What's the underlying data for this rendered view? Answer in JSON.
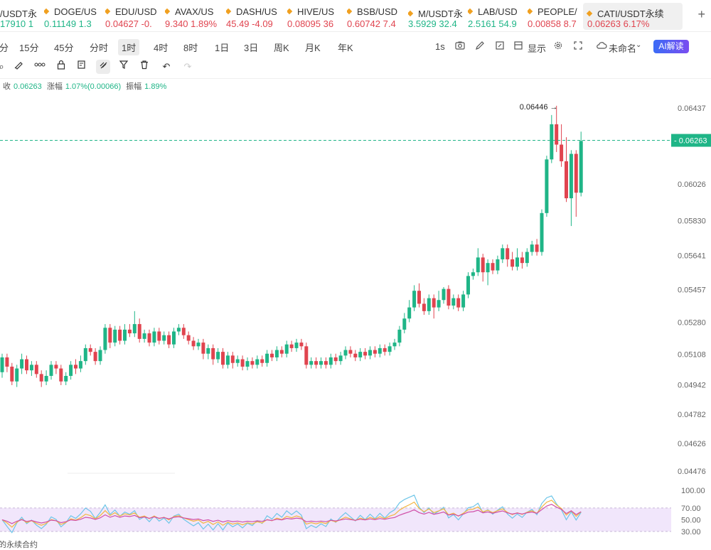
{
  "tickers": [
    {
      "symbol": "/USDT永",
      "price": "17910",
      "change": "1",
      "dir": "up"
    },
    {
      "symbol": "DOGE/US",
      "price": "0.11149",
      "change": "1.3",
      "dir": "up"
    },
    {
      "symbol": "EDU/USD",
      "price": "0.04627",
      "change": "-0.",
      "dir": "down"
    },
    {
      "symbol": "AVAX/US",
      "price": "9.340",
      "change": "1.89%",
      "dir": "down"
    },
    {
      "symbol": "DASH/US",
      "price": "45.49",
      "change": "-4.09",
      "dir": "down"
    },
    {
      "symbol": "HIVE/US",
      "price": "0.08095",
      "change": "36",
      "dir": "down"
    },
    {
      "symbol": "BSB/USD",
      "price": "0.60742",
      "change": "7.4",
      "dir": "down"
    },
    {
      "symbol": "M/USDT永",
      "price": "3.5929",
      "change": "32.4",
      "dir": "up"
    },
    {
      "symbol": "LAB/USD",
      "price": "2.5161",
      "change": "54.9",
      "dir": "up"
    },
    {
      "symbol": "PEOPLE/",
      "price": "0.00858",
      "change": "8.7",
      "dir": "down"
    },
    {
      "symbol": "CATI/USDT永续",
      "price": "0.06263",
      "change": "6.17%",
      "dir": "down",
      "active": true
    }
  ],
  "plus_label": "+",
  "intervals": [
    "分",
    "15分",
    "45分",
    "分时",
    "1时",
    "4时",
    "8时",
    "1日",
    "3日",
    "周K",
    "月K",
    "年K"
  ],
  "selected_interval": "1时",
  "right_toolbar": {
    "refresh": "1s",
    "display": "显示",
    "layout": "未命名",
    "ai": "AI解读"
  },
  "info": {
    "close_label": "收",
    "close": "0.06263",
    "amp_label": "涨幅",
    "amp": "1.07%(0.00066)",
    "range_label": "振幅",
    "range": "1.89%"
  },
  "footer_text": "的永续合约",
  "colors": {
    "up": "#1fb587",
    "down": "#e0444f",
    "rsi1": "#6ec6e8",
    "rsi2": "#f2b640",
    "rsi3": "#d04fa8",
    "rsi_band": "#f1e6fb"
  },
  "chart_data": {
    "type": "candlestick",
    "price_axis_ticks": [
      "0.06437",
      "0.06026",
      "0.05830",
      "0.05641",
      "0.05457",
      "0.05280",
      "0.05108",
      "0.04942",
      "0.04782",
      "0.04626",
      "0.04476"
    ],
    "ylim": [
      0.0441,
      0.0653
    ],
    "last_price": "0.06263",
    "high_annotation": "0.06446",
    "candles": [
      [
        0.0501,
        0.0509,
        0.0498,
        0.0511
      ],
      [
        0.0509,
        0.0504,
        0.0501,
        0.0511
      ],
      [
        0.0504,
        0.0496,
        0.0494,
        0.0506
      ],
      [
        0.0496,
        0.0503,
        0.0493,
        0.0505
      ],
      [
        0.0503,
        0.0508,
        0.05,
        0.0511
      ],
      [
        0.0508,
        0.0502,
        0.05,
        0.051
      ],
      [
        0.0502,
        0.0505,
        0.0499,
        0.0507
      ],
      [
        0.0505,
        0.05,
        0.0498,
        0.0507
      ],
      [
        0.05,
        0.0496,
        0.0493,
        0.0502
      ],
      [
        0.0496,
        0.0499,
        0.0494,
        0.0502
      ],
      [
        0.0499,
        0.0505,
        0.0497,
        0.0507
      ],
      [
        0.0505,
        0.0503,
        0.05,
        0.0507
      ],
      [
        0.0503,
        0.0496,
        0.0494,
        0.0505
      ],
      [
        0.0496,
        0.0499,
        0.0494,
        0.0501
      ],
      [
        0.0499,
        0.0505,
        0.0497,
        0.0507
      ],
      [
        0.0505,
        0.0503,
        0.05,
        0.0508
      ],
      [
        0.0503,
        0.0507,
        0.0501,
        0.051
      ],
      [
        0.0507,
        0.0514,
        0.0505,
        0.0516
      ],
      [
        0.0514,
        0.0512,
        0.051,
        0.0516
      ],
      [
        0.0512,
        0.0507,
        0.0505,
        0.0514
      ],
      [
        0.0507,
        0.0513,
        0.0505,
        0.0515
      ],
      [
        0.0513,
        0.0525,
        0.0511,
        0.0527
      ],
      [
        0.0525,
        0.0517,
        0.0514,
        0.0527
      ],
      [
        0.0517,
        0.0524,
        0.0515,
        0.0526
      ],
      [
        0.0524,
        0.0518,
        0.0516,
        0.0526
      ],
      [
        0.0518,
        0.0524,
        0.0516,
        0.0527
      ],
      [
        0.0524,
        0.0522,
        0.052,
        0.0527
      ],
      [
        0.0522,
        0.0527,
        0.052,
        0.0534
      ],
      [
        0.0527,
        0.0519,
        0.0517,
        0.053
      ],
      [
        0.0519,
        0.0522,
        0.0517,
        0.0524
      ],
      [
        0.0522,
        0.0517,
        0.0515,
        0.0524
      ],
      [
        0.0517,
        0.0523,
        0.0515,
        0.0525
      ],
      [
        0.0523,
        0.0518,
        0.0516,
        0.0525
      ],
      [
        0.0518,
        0.0521,
        0.0516,
        0.0523
      ],
      [
        0.0521,
        0.0516,
        0.0514,
        0.0523
      ],
      [
        0.0516,
        0.0523,
        0.0514,
        0.0525
      ],
      [
        0.0523,
        0.0525,
        0.0521,
        0.0527
      ],
      [
        0.0525,
        0.0521,
        0.0519,
        0.0527
      ],
      [
        0.0521,
        0.0518,
        0.0516,
        0.0523
      ],
      [
        0.0518,
        0.0515,
        0.0513,
        0.052
      ],
      [
        0.0515,
        0.0517,
        0.0513,
        0.0519
      ],
      [
        0.0517,
        0.0511,
        0.0508,
        0.0519
      ],
      [
        0.0511,
        0.0514,
        0.0508,
        0.0516
      ],
      [
        0.0514,
        0.0508,
        0.0505,
        0.0516
      ],
      [
        0.0508,
        0.0512,
        0.0506,
        0.0514
      ],
      [
        0.0512,
        0.0505,
        0.0503,
        0.0514
      ],
      [
        0.0505,
        0.051,
        0.0503,
        0.0512
      ],
      [
        0.051,
        0.0506,
        0.0503,
        0.0512
      ],
      [
        0.0506,
        0.0508,
        0.0504,
        0.051
      ],
      [
        0.0508,
        0.0504,
        0.0502,
        0.051
      ],
      [
        0.0504,
        0.0507,
        0.0502,
        0.0509
      ],
      [
        0.0507,
        0.0505,
        0.0503,
        0.0509
      ],
      [
        0.0505,
        0.0508,
        0.0503,
        0.051
      ],
      [
        0.0508,
        0.0506,
        0.0504,
        0.051
      ],
      [
        0.0506,
        0.0511,
        0.0504,
        0.0513
      ],
      [
        0.0511,
        0.0509,
        0.0507,
        0.0513
      ],
      [
        0.0509,
        0.0513,
        0.0507,
        0.0515
      ],
      [
        0.0513,
        0.0511,
        0.0509,
        0.0515
      ],
      [
        0.0511,
        0.0516,
        0.0509,
        0.0518
      ],
      [
        0.0516,
        0.0514,
        0.0512,
        0.0518
      ],
      [
        0.0514,
        0.0517,
        0.0512,
        0.0519
      ],
      [
        0.0517,
        0.0515,
        0.0513,
        0.0519
      ],
      [
        0.0515,
        0.0505,
        0.0503,
        0.0517
      ],
      [
        0.0505,
        0.0507,
        0.0503,
        0.0509
      ],
      [
        0.0507,
        0.0505,
        0.0503,
        0.0509
      ],
      [
        0.0505,
        0.0507,
        0.0503,
        0.0509
      ],
      [
        0.0507,
        0.0505,
        0.0503,
        0.0509
      ],
      [
        0.0505,
        0.0509,
        0.0503,
        0.0511
      ],
      [
        0.0509,
        0.0507,
        0.0505,
        0.0511
      ],
      [
        0.0507,
        0.051,
        0.0505,
        0.0512
      ],
      [
        0.051,
        0.0513,
        0.0508,
        0.0515
      ],
      [
        0.0513,
        0.0511,
        0.0509,
        0.0515
      ],
      [
        0.0511,
        0.0509,
        0.0507,
        0.0513
      ],
      [
        0.0509,
        0.0512,
        0.0507,
        0.0514
      ],
      [
        0.0512,
        0.051,
        0.0508,
        0.0514
      ],
      [
        0.051,
        0.0513,
        0.0508,
        0.0515
      ],
      [
        0.0513,
        0.0511,
        0.0509,
        0.0515
      ],
      [
        0.0511,
        0.0514,
        0.0509,
        0.0516
      ],
      [
        0.0514,
        0.0512,
        0.051,
        0.0516
      ],
      [
        0.0512,
        0.0515,
        0.051,
        0.0517
      ],
      [
        0.0515,
        0.0517,
        0.0513,
        0.0519
      ],
      [
        0.0517,
        0.0524,
        0.0515,
        0.0526
      ],
      [
        0.0524,
        0.053,
        0.0522,
        0.0533
      ],
      [
        0.053,
        0.0536,
        0.0528,
        0.054
      ],
      [
        0.0536,
        0.0545,
        0.0534,
        0.0548
      ],
      [
        0.0545,
        0.0538,
        0.0536,
        0.0549
      ],
      [
        0.0538,
        0.0534,
        0.0532,
        0.0541
      ],
      [
        0.0534,
        0.0541,
        0.0532,
        0.0543
      ],
      [
        0.0541,
        0.0536,
        0.053,
        0.0543
      ],
      [
        0.0536,
        0.054,
        0.0534,
        0.0545
      ],
      [
        0.054,
        0.0546,
        0.0538,
        0.0547
      ],
      [
        0.0546,
        0.0537,
        0.0535,
        0.0548
      ],
      [
        0.0537,
        0.0541,
        0.0535,
        0.0543
      ],
      [
        0.0541,
        0.0536,
        0.0534,
        0.0543
      ],
      [
        0.0536,
        0.0543,
        0.0534,
        0.0545
      ],
      [
        0.0543,
        0.0553,
        0.0541,
        0.0555
      ],
      [
        0.0553,
        0.0555,
        0.0551,
        0.0557
      ],
      [
        0.0555,
        0.0563,
        0.0553,
        0.0568
      ],
      [
        0.0563,
        0.0555,
        0.055,
        0.0565
      ],
      [
        0.0555,
        0.056,
        0.0548,
        0.0562
      ],
      [
        0.056,
        0.0556,
        0.0554,
        0.0562
      ],
      [
        0.0556,
        0.0562,
        0.0554,
        0.0564
      ],
      [
        0.0562,
        0.0568,
        0.056,
        0.057
      ],
      [
        0.0568,
        0.0562,
        0.0558,
        0.057
      ],
      [
        0.0562,
        0.0558,
        0.0556,
        0.0566
      ],
      [
        0.0558,
        0.0563,
        0.0556,
        0.0568
      ],
      [
        0.0563,
        0.056,
        0.0557,
        0.0566
      ],
      [
        0.056,
        0.0566,
        0.0558,
        0.0568
      ],
      [
        0.0566,
        0.057,
        0.0564,
        0.0572
      ],
      [
        0.057,
        0.0566,
        0.0564,
        0.0573
      ],
      [
        0.0566,
        0.0587,
        0.0564,
        0.0589
      ],
      [
        0.0587,
        0.0616,
        0.0585,
        0.0618
      ],
      [
        0.0616,
        0.0635,
        0.0614,
        0.064
      ],
      [
        0.0635,
        0.0624,
        0.062,
        0.0645
      ],
      [
        0.0624,
        0.0615,
        0.0612,
        0.0635
      ],
      [
        0.0615,
        0.0595,
        0.0593,
        0.0628
      ],
      [
        0.0595,
        0.0619,
        0.058,
        0.0621
      ],
      [
        0.0619,
        0.0598,
        0.0585,
        0.0621
      ],
      [
        0.0598,
        0.0626,
        0.0596,
        0.0631
      ]
    ],
    "rsi": {
      "ticks": [
        "100.00",
        "70.00",
        "50.00",
        "30.00"
      ],
      "ylim": [
        25,
        105
      ]
    }
  }
}
